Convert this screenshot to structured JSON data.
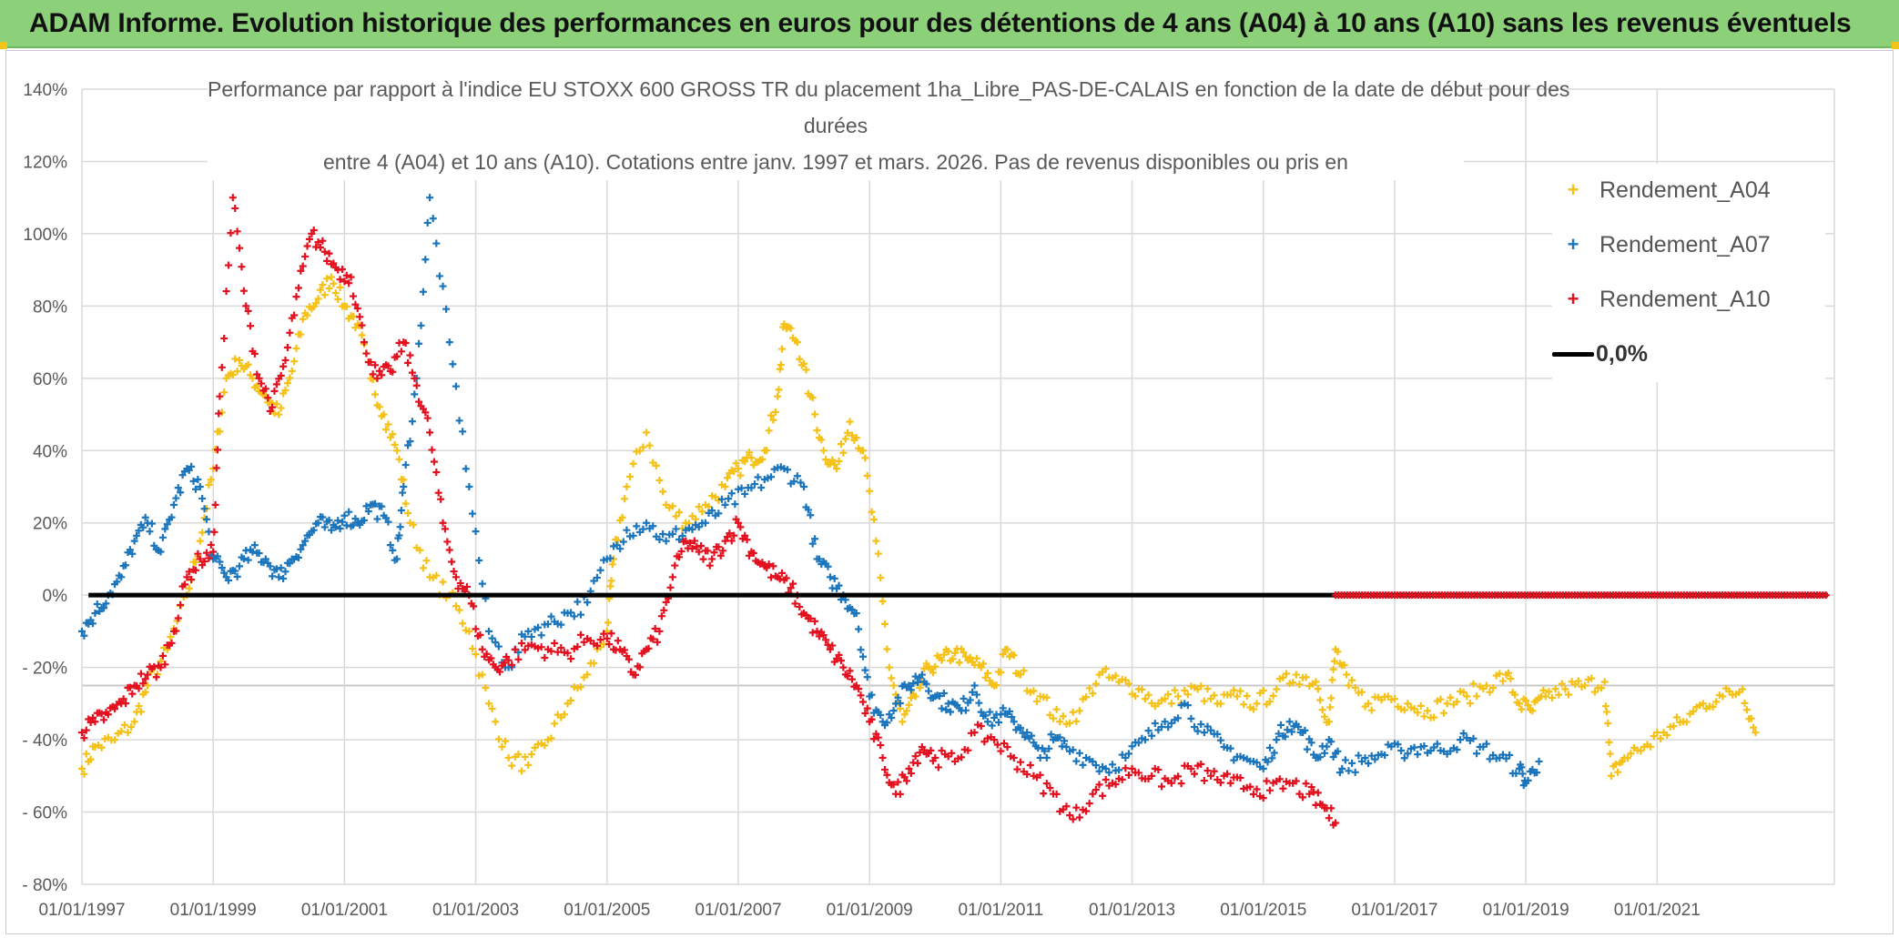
{
  "banner": {
    "title": "ADAM Informe. Evolution historique des performances en euros pour des détentions de 4 ans (A04) à 10 ans (A10) sans les revenus éventuels"
  },
  "chart_data": {
    "type": "scatter",
    "title_lines": [
      "Performance  par rapport à l'indice EU STOXX 600 GROSS TR  du placement 1ha_Libre_PAS-DE-CALAIS en fonction de la date de début pour des",
      "durées",
      "entre 4 (A04) et 10 ans (A10). Cotations entre janv. 1997 et mars. 2026. Pas de revenus disponibles ou pris en"
    ],
    "x_ticks": [
      "01/01/1997",
      "01/01/1999",
      "01/01/2001",
      "01/01/2003",
      "01/01/2005",
      "01/01/2007",
      "01/01/2009",
      "01/01/2011",
      "01/01/2013",
      "01/01/2015",
      "01/01/2017",
      "01/01/2019",
      "01/01/2021"
    ],
    "x_range": [
      1997.0,
      2023.7
    ],
    "y_ticks": [
      "140%",
      "120%",
      "100%",
      "80%",
      "60%",
      "40%",
      "20%",
      "0%",
      "- 20%",
      "- 40%",
      "- 60%",
      "- 80%"
    ],
    "y_range": [
      -80,
      140
    ],
    "extra_hline": -25,
    "colors": {
      "A04": "#f5c116",
      "A07": "#1b75bc",
      "A10": "#e3101f",
      "zero": "#000000",
      "grid": "#d9d9d9"
    },
    "legend": [
      {
        "key": "A04",
        "label": "Rendement_A04"
      },
      {
        "key": "A07",
        "label": "Rendement_A07"
      },
      {
        "key": "A10",
        "label": "Rendement_A10"
      },
      {
        "key": "zero",
        "label": "0,0%"
      }
    ],
    "zero_line": {
      "y": 0,
      "x_start": 1997.1,
      "x_end": 2023.6
    },
    "series": [
      {
        "name": "Rendement_A04",
        "key": "A04",
        "x": [
          1997.0,
          1997.2,
          1997.5,
          1997.8,
          1998.0,
          1998.3,
          1998.6,
          1998.8,
          1999.0,
          1999.2,
          1999.4,
          1999.6,
          1999.8,
          2000.0,
          2000.2,
          2000.4,
          2000.6,
          2000.8,
          2001.0,
          2001.2,
          2001.4,
          2001.6,
          2001.8,
          2002.0,
          2002.3,
          2002.6,
          2002.9,
          2003.2,
          2003.5,
          2003.8,
          2004.1,
          2004.4,
          2004.7,
          2005.0,
          2005.1,
          2005.3,
          2005.6,
          2005.9,
          2006.2,
          2006.5,
          2006.8,
          2007.0,
          2007.2,
          2007.4,
          2007.6,
          2007.7,
          2007.9,
          2008.1,
          2008.3,
          2008.5,
          2008.7,
          2008.9,
          2009.1,
          2009.3,
          2009.5,
          2009.7,
          2009.9,
          2010.1,
          2010.3,
          2010.5,
          2010.7,
          2010.9,
          2011.1,
          2011.3,
          2011.6,
          2011.9,
          2012.2,
          2012.5,
          2012.8,
          2013.1,
          2013.4,
          2013.7,
          2014.0,
          2014.3,
          2014.6,
          2014.9,
          2015.2,
          2015.5,
          2015.8,
          2016.0,
          2016.1,
          2016.3,
          2016.6,
          2016.9,
          2017.2,
          2017.5,
          2017.8,
          2018.1,
          2018.4,
          2018.7,
          2018.9,
          2019.1,
          2019.3,
          2019.6,
          2019.9,
          2020.2,
          2020.3,
          2020.5,
          2020.8,
          2021.1,
          2021.4,
          2021.7,
          2022.0,
          2022.3,
          2022.5
        ],
        "y": [
          -48,
          -42,
          -40,
          -35,
          -25,
          -15,
          0,
          15,
          35,
          60,
          65,
          60,
          55,
          50,
          62,
          78,
          82,
          88,
          80,
          75,
          60,
          50,
          40,
          20,
          5,
          0,
          -10,
          -30,
          -45,
          -47,
          -40,
          -30,
          -22,
          -10,
          10,
          30,
          45,
          25,
          20,
          25,
          30,
          35,
          38,
          40,
          55,
          75,
          70,
          55,
          40,
          35,
          48,
          40,
          15,
          -20,
          -35,
          -28,
          -20,
          -18,
          -16,
          -18,
          -20,
          -25,
          -15,
          -22,
          -28,
          -35,
          -32,
          -22,
          -24,
          -26,
          -30,
          -28,
          -26,
          -30,
          -28,
          -30,
          -26,
          -22,
          -24,
          -35,
          -15,
          -25,
          -30,
          -28,
          -30,
          -32,
          -30,
          -28,
          -25,
          -22,
          -30,
          -32,
          -28,
          -26,
          -25,
          -24,
          -50,
          -45,
          -42,
          -38,
          -35,
          -30,
          -28,
          -26,
          -38
        ]
      },
      {
        "name": "Rendement_A07",
        "key": "A07",
        "x": [
          1997.0,
          1997.2,
          1997.4,
          1997.6,
          1997.8,
          1998.0,
          1998.2,
          1998.4,
          1998.6,
          1998.8,
          1999.0,
          1999.2,
          1999.4,
          1999.6,
          1999.8,
          2000.0,
          2000.2,
          2000.4,
          2000.6,
          2000.8,
          2001.0,
          2001.2,
          2001.4,
          2001.6,
          2001.8,
          2001.9,
          2002.1,
          2002.3,
          2002.6,
          2002.9,
          2003.2,
          2003.5,
          2003.8,
          2004.1,
          2004.4,
          2004.7,
          2005.0,
          2005.3,
          2005.6,
          2005.9,
          2006.2,
          2006.5,
          2006.8,
          2007.1,
          2007.4,
          2007.7,
          2008.0,
          2008.2,
          2008.4,
          2008.6,
          2008.8,
          2009.0,
          2009.2,
          2009.4,
          2009.6,
          2009.8,
          2010.0,
          2010.2,
          2010.4,
          2010.6,
          2010.8,
          2011.0,
          2011.2,
          2011.4,
          2011.6,
          2011.8,
          2012.0,
          2012.3,
          2012.6,
          2012.9,
          2013.2,
          2013.5,
          2013.8,
          2014.1,
          2014.4,
          2014.7,
          2015.0,
          2015.2,
          2015.4,
          2015.6,
          2015.8,
          2016.0,
          2016.2,
          2016.5,
          2016.8,
          2017.1,
          2017.4,
          2017.7,
          2018.0,
          2018.3,
          2018.6,
          2018.9,
          2019.0,
          2019.2
        ],
        "y": [
          -10,
          -5,
          0,
          5,
          15,
          20,
          12,
          25,
          35,
          30,
          10,
          5,
          8,
          12,
          10,
          5,
          10,
          15,
          20,
          18,
          22,
          20,
          25,
          22,
          10,
          30,
          60,
          110,
          70,
          30,
          -10,
          -20,
          -10,
          -8,
          -5,
          -2,
          10,
          18,
          20,
          15,
          18,
          20,
          25,
          28,
          32,
          35,
          30,
          10,
          5,
          0,
          -5,
          -28,
          -35,
          -30,
          -25,
          -22,
          -28,
          -30,
          -32,
          -25,
          -35,
          -33,
          -35,
          -38,
          -45,
          -40,
          -42,
          -45,
          -48,
          -45,
          -40,
          -35,
          -30,
          -38,
          -42,
          -45,
          -48,
          -40,
          -35,
          -38,
          -45,
          -40,
          -48,
          -46,
          -44,
          -43,
          -42,
          -43,
          -40,
          -42,
          -45,
          -48,
          -52,
          -46
        ]
      },
      {
        "name": "Rendement_A10",
        "key": "A10",
        "x": [
          1997.0,
          1997.2,
          1997.4,
          1997.6,
          1997.8,
          1998.0,
          1998.2,
          1998.4,
          1998.6,
          1998.8,
          1999.0,
          1999.1,
          1999.3,
          1999.5,
          1999.7,
          1999.9,
          2000.1,
          2000.3,
          2000.5,
          2000.7,
          2000.9,
          2001.1,
          2001.3,
          2001.5,
          2001.7,
          2001.9,
          2002.1,
          2002.3,
          2002.5,
          2002.7,
          2002.9,
          2003.1,
          2003.3,
          2003.5,
          2003.8,
          2004.1,
          2004.4,
          2004.7,
          2005.0,
          2005.2,
          2005.4,
          2005.6,
          2005.8,
          2006.0,
          2006.2,
          2006.4,
          2006.6,
          2006.8,
          2007.0,
          2007.2,
          2007.4,
          2007.6,
          2007.8,
          2008.0,
          2008.2,
          2008.4,
          2008.6,
          2008.8,
          2009.0,
          2009.2,
          2009.4,
          2009.6,
          2009.8,
          2010.0,
          2010.3,
          2010.6,
          2010.9,
          2011.2,
          2011.5,
          2011.8,
          2012.1,
          2012.4,
          2012.7,
          2013.0,
          2013.3,
          2013.6,
          2013.9,
          2014.2,
          2014.5,
          2014.8,
          2015.1,
          2015.4,
          2015.7,
          2015.9,
          2016.1
        ],
        "y": [
          -38,
          -35,
          -33,
          -30,
          -25,
          -22,
          -20,
          -10,
          5,
          10,
          12,
          55,
          110,
          80,
          60,
          52,
          65,
          85,
          100,
          95,
          90,
          88,
          70,
          60,
          62,
          70,
          58,
          45,
          20,
          5,
          0,
          -15,
          -20,
          -18,
          -14,
          -15,
          -16,
          -12,
          -12,
          -15,
          -22,
          -15,
          -10,
          5,
          15,
          12,
          10,
          15,
          20,
          12,
          8,
          5,
          2,
          -5,
          -10,
          -15,
          -20,
          -25,
          -35,
          -45,
          -55,
          -48,
          -42,
          -45,
          -46,
          -38,
          -40,
          -45,
          -50,
          -55,
          -62,
          -55,
          -52,
          -48,
          -50,
          -52,
          -48,
          -50,
          -52,
          -53,
          -54,
          -52,
          -55,
          -58,
          -63
        ]
      }
    ],
    "flat_zero_red": {
      "x_start": 2016.1,
      "x_end": 2023.6,
      "y": 0
    }
  }
}
